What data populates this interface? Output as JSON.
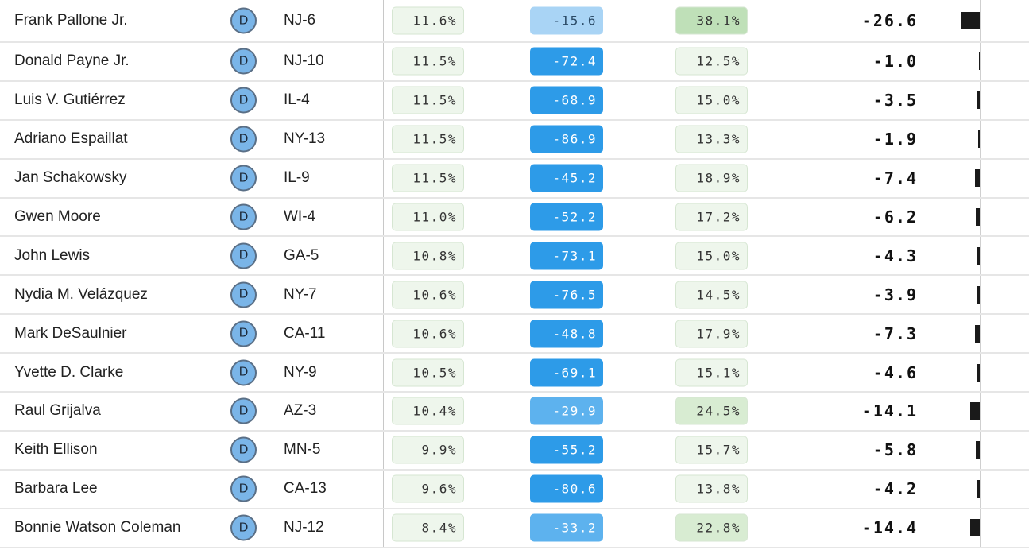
{
  "colors": {
    "party_dem": "#7ab5e8",
    "margin_light": "#a9d4f5",
    "margin_mid": "#5db2ee",
    "margin_dark": "#2d9be8",
    "share_bg": "#eef6ec",
    "new_light": "#eef6ec",
    "new_mid": "#d8ecd2",
    "new_dark": "#bfe0b8",
    "bar": "#1a1a1a"
  },
  "rows": [
    {
      "name": "Frank Pallone Jr.",
      "party": "D",
      "district": "NJ-6",
      "share": "11.6%",
      "margin": "-15.6",
      "new": "38.1%",
      "shift": "-26.6",
      "shift_value": -26.6
    },
    {
      "name": "Donald Payne Jr.",
      "party": "D",
      "district": "NJ-10",
      "share": "11.5%",
      "margin": "-72.4",
      "new": "12.5%",
      "shift": "-1.0",
      "shift_value": -1.0
    },
    {
      "name": "Luis V. Gutiérrez",
      "party": "D",
      "district": "IL-4",
      "share": "11.5%",
      "margin": "-68.9",
      "new": "15.0%",
      "shift": "-3.5",
      "shift_value": -3.5
    },
    {
      "name": "Adriano Espaillat",
      "party": "D",
      "district": "NY-13",
      "share": "11.5%",
      "margin": "-86.9",
      "new": "13.3%",
      "shift": "-1.9",
      "shift_value": -1.9
    },
    {
      "name": "Jan Schakowsky",
      "party": "D",
      "district": "IL-9",
      "share": "11.5%",
      "margin": "-45.2",
      "new": "18.9%",
      "shift": "-7.4",
      "shift_value": -7.4
    },
    {
      "name": "Gwen Moore",
      "party": "D",
      "district": "WI-4",
      "share": "11.0%",
      "margin": "-52.2",
      "new": "17.2%",
      "shift": "-6.2",
      "shift_value": -6.2
    },
    {
      "name": "John Lewis",
      "party": "D",
      "district": "GA-5",
      "share": "10.8%",
      "margin": "-73.1",
      "new": "15.0%",
      "shift": "-4.3",
      "shift_value": -4.3
    },
    {
      "name": "Nydia M. Velázquez",
      "party": "D",
      "district": "NY-7",
      "share": "10.6%",
      "margin": "-76.5",
      "new": "14.5%",
      "shift": "-3.9",
      "shift_value": -3.9
    },
    {
      "name": "Mark DeSaulnier",
      "party": "D",
      "district": "CA-11",
      "share": "10.6%",
      "margin": "-48.8",
      "new": "17.9%",
      "shift": "-7.3",
      "shift_value": -7.3
    },
    {
      "name": "Yvette D. Clarke",
      "party": "D",
      "district": "NY-9",
      "share": "10.5%",
      "margin": "-69.1",
      "new": "15.1%",
      "shift": "-4.6",
      "shift_value": -4.6
    },
    {
      "name": "Raul Grijalva",
      "party": "D",
      "district": "AZ-3",
      "share": "10.4%",
      "margin": "-29.9",
      "new": "24.5%",
      "shift": "-14.1",
      "shift_value": -14.1
    },
    {
      "name": "Keith Ellison",
      "party": "D",
      "district": "MN-5",
      "share": "9.9%",
      "margin": "-55.2",
      "new": "15.7%",
      "shift": "-5.8",
      "shift_value": -5.8
    },
    {
      "name": "Barbara Lee",
      "party": "D",
      "district": "CA-13",
      "share": "9.6%",
      "margin": "-80.6",
      "new": "13.8%",
      "shift": "-4.2",
      "shift_value": -4.2
    },
    {
      "name": "Bonnie Watson Coleman",
      "party": "D",
      "district": "NJ-12",
      "share": "8.4%",
      "margin": "-33.2",
      "new": "22.8%",
      "shift": "-14.4",
      "shift_value": -14.4
    }
  ]
}
